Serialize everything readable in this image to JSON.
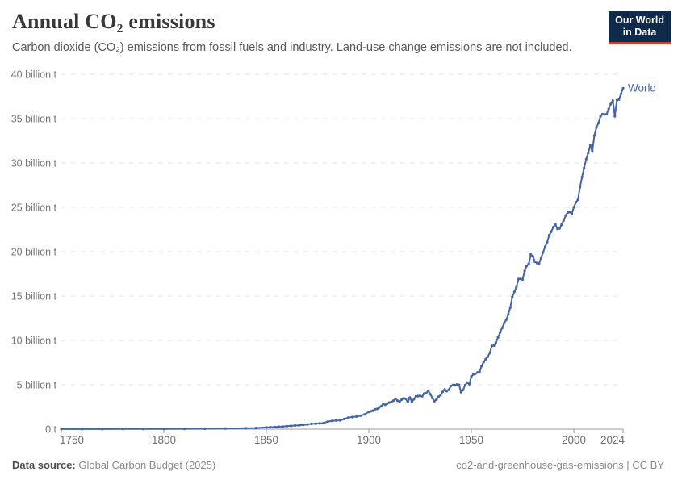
{
  "header": {
    "title": "Annual CO₂ emissions",
    "subtitle": "Carbon dioxide (CO₂) emissions from fossil fuels and industry. Land-use change emissions are not included.",
    "logo": {
      "line1": "Our World",
      "line2": "in Data"
    }
  },
  "footer": {
    "source_label": "Data source:",
    "source_value": " Global Carbon Budget (2025)",
    "right_text": "co2-and-greenhouse-gas-emissions | CC BY"
  },
  "colors": {
    "series_blue": "#4465A4",
    "gridline": "#e1e1e1",
    "axis": "#9a9a9a",
    "logo_bg": "#102A4C",
    "logo_bar": "#D93A2E"
  },
  "chart_data": {
    "type": "line",
    "title": "Annual CO₂ emissions",
    "xlabel": "",
    "ylabel": "",
    "unit": "billion t CO₂",
    "xlim": [
      1750,
      2024
    ],
    "ylim": [
      0,
      40
    ],
    "grid": "horizontal-dashed",
    "legend_position": "end-of-line-label",
    "xticks": [
      1750,
      1800,
      1850,
      1900,
      1950,
      2000,
      2024
    ],
    "yticks": [
      0,
      5,
      10,
      15,
      20,
      25,
      30,
      35,
      40
    ],
    "ytick_labels": [
      "0 t",
      "5 billion t",
      "10 billion t",
      "15 billion t",
      "20 billion t",
      "25 billion t",
      "30 billion t",
      "35 billion t",
      "40 billion t"
    ],
    "series": [
      {
        "name": "World",
        "color": "#4465A4",
        "points": [
          [
            1750,
            0.009
          ],
          [
            1760,
            0.011
          ],
          [
            1770,
            0.013
          ],
          [
            1780,
            0.016
          ],
          [
            1790,
            0.02
          ],
          [
            1800,
            0.03
          ],
          [
            1810,
            0.04
          ],
          [
            1820,
            0.05
          ],
          [
            1830,
            0.07
          ],
          [
            1840,
            0.1
          ],
          [
            1845,
            0.13
          ],
          [
            1850,
            0.2
          ],
          [
            1852,
            0.22
          ],
          [
            1854,
            0.24
          ],
          [
            1856,
            0.27
          ],
          [
            1858,
            0.29
          ],
          [
            1860,
            0.34
          ],
          [
            1862,
            0.37
          ],
          [
            1864,
            0.41
          ],
          [
            1866,
            0.44
          ],
          [
            1868,
            0.47
          ],
          [
            1870,
            0.53
          ],
          [
            1872,
            0.6
          ],
          [
            1874,
            0.62
          ],
          [
            1876,
            0.65
          ],
          [
            1878,
            0.69
          ],
          [
            1880,
            0.85
          ],
          [
            1882,
            0.93
          ],
          [
            1884,
            0.97
          ],
          [
            1886,
            0.99
          ],
          [
            1888,
            1.14
          ],
          [
            1890,
            1.3
          ],
          [
            1892,
            1.36
          ],
          [
            1894,
            1.42
          ],
          [
            1896,
            1.52
          ],
          [
            1898,
            1.66
          ],
          [
            1900,
            1.95
          ],
          [
            1901,
            2.02
          ],
          [
            1902,
            2.08
          ],
          [
            1903,
            2.25
          ],
          [
            1904,
            2.27
          ],
          [
            1905,
            2.44
          ],
          [
            1906,
            2.58
          ],
          [
            1907,
            2.84
          ],
          [
            1908,
            2.75
          ],
          [
            1909,
            2.88
          ],
          [
            1910,
            3.0
          ],
          [
            1911,
            3.06
          ],
          [
            1912,
            3.21
          ],
          [
            1913,
            3.42
          ],
          [
            1914,
            3.21
          ],
          [
            1915,
            3.1
          ],
          [
            1916,
            3.33
          ],
          [
            1917,
            3.47
          ],
          [
            1918,
            3.42
          ],
          [
            1919,
            3.04
          ],
          [
            1920,
            3.55
          ],
          [
            1921,
            3.08
          ],
          [
            1922,
            3.37
          ],
          [
            1923,
            3.71
          ],
          [
            1924,
            3.72
          ],
          [
            1925,
            3.76
          ],
          [
            1926,
            3.7
          ],
          [
            1927,
            4.02
          ],
          [
            1928,
            4.05
          ],
          [
            1929,
            4.33
          ],
          [
            1930,
            3.94
          ],
          [
            1931,
            3.51
          ],
          [
            1932,
            3.15
          ],
          [
            1933,
            3.33
          ],
          [
            1934,
            3.65
          ],
          [
            1935,
            3.83
          ],
          [
            1936,
            4.2
          ],
          [
            1937,
            4.48
          ],
          [
            1938,
            4.28
          ],
          [
            1939,
            4.45
          ],
          [
            1940,
            4.85
          ],
          [
            1941,
            4.97
          ],
          [
            1942,
            4.95
          ],
          [
            1943,
            5.04
          ],
          [
            1944,
            4.99
          ],
          [
            1945,
            4.16
          ],
          [
            1946,
            4.44
          ],
          [
            1947,
            4.96
          ],
          [
            1948,
            5.24
          ],
          [
            1949,
            5.06
          ],
          [
            1950,
            5.93
          ],
          [
            1951,
            6.18
          ],
          [
            1952,
            6.25
          ],
          [
            1953,
            6.39
          ],
          [
            1954,
            6.46
          ],
          [
            1955,
            7.12
          ],
          [
            1956,
            7.57
          ],
          [
            1957,
            7.89
          ],
          [
            1958,
            8.16
          ],
          [
            1959,
            8.58
          ],
          [
            1960,
            9.39
          ],
          [
            1961,
            9.41
          ],
          [
            1962,
            9.78
          ],
          [
            1963,
            10.33
          ],
          [
            1964,
            10.89
          ],
          [
            1965,
            11.39
          ],
          [
            1966,
            11.95
          ],
          [
            1967,
            12.31
          ],
          [
            1968,
            12.94
          ],
          [
            1969,
            13.71
          ],
          [
            1970,
            14.9
          ],
          [
            1971,
            15.46
          ],
          [
            1972,
            16.04
          ],
          [
            1973,
            16.93
          ],
          [
            1974,
            16.94
          ],
          [
            1975,
            16.86
          ],
          [
            1976,
            17.84
          ],
          [
            1977,
            18.4
          ],
          [
            1978,
            18.64
          ],
          [
            1979,
            19.68
          ],
          [
            1980,
            19.48
          ],
          [
            1981,
            18.87
          ],
          [
            1982,
            18.72
          ],
          [
            1983,
            18.66
          ],
          [
            1984,
            19.29
          ],
          [
            1985,
            19.93
          ],
          [
            1986,
            20.57
          ],
          [
            1987,
            21.08
          ],
          [
            1988,
            21.87
          ],
          [
            1989,
            22.26
          ],
          [
            1990,
            22.76
          ],
          [
            1991,
            23.05
          ],
          [
            1992,
            22.58
          ],
          [
            1993,
            22.61
          ],
          [
            1994,
            23.04
          ],
          [
            1995,
            23.51
          ],
          [
            1996,
            24.07
          ],
          [
            1997,
            24.41
          ],
          [
            1998,
            24.46
          ],
          [
            1999,
            24.29
          ],
          [
            2000,
            25.01
          ],
          [
            2001,
            25.55
          ],
          [
            2002,
            25.85
          ],
          [
            2003,
            27.29
          ],
          [
            2004,
            28.41
          ],
          [
            2005,
            29.42
          ],
          [
            2006,
            30.43
          ],
          [
            2007,
            31.11
          ],
          [
            2008,
            31.97
          ],
          [
            2009,
            31.29
          ],
          [
            2010,
            33.08
          ],
          [
            2011,
            34.0
          ],
          [
            2012,
            34.49
          ],
          [
            2013,
            35.26
          ],
          [
            2014,
            35.52
          ],
          [
            2015,
            35.47
          ],
          [
            2016,
            35.51
          ],
          [
            2017,
            36.1
          ],
          [
            2018,
            36.65
          ],
          [
            2019,
            37.04
          ],
          [
            2020,
            35.26
          ],
          [
            2021,
            37.08
          ],
          [
            2022,
            37.15
          ],
          [
            2023,
            37.79
          ],
          [
            2024,
            38.42
          ]
        ]
      }
    ]
  }
}
